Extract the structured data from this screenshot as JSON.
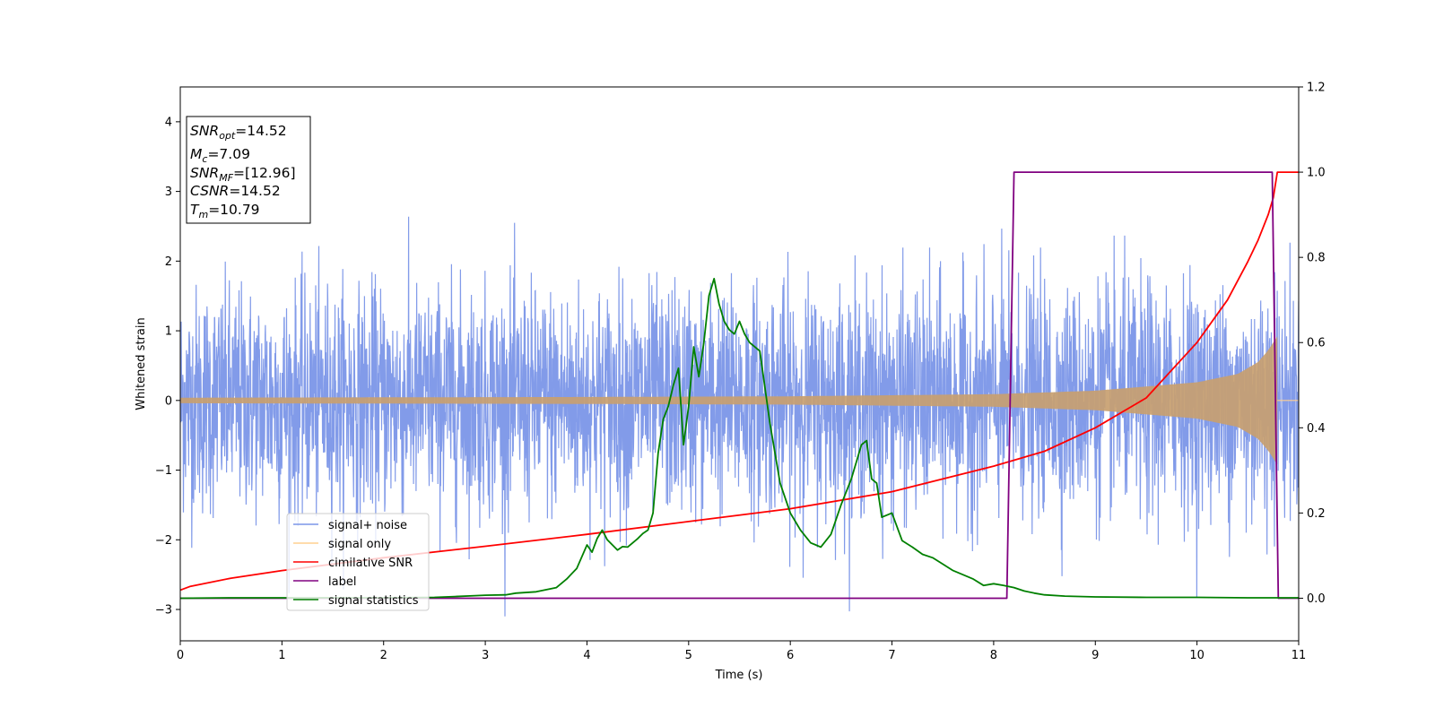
{
  "chart_data": {
    "type": "line",
    "xlabel": "Time (s)",
    "ylabel": "Whitened strain",
    "xlim": [
      0,
      11
    ],
    "ylim_left": [
      -3.45,
      4.5
    ],
    "ylim_right": [
      -0.1,
      1.2
    ],
    "x_ticks": [
      "0",
      "1",
      "2",
      "3",
      "4",
      "5",
      "6",
      "7",
      "8",
      "9",
      "10",
      "11"
    ],
    "y_ticks_left": [
      "−3",
      "−2",
      "−1",
      "0",
      "1",
      "2",
      "3",
      "4"
    ],
    "y_ticks_right": [
      "0.0",
      "0.2",
      "0.4",
      "0.6",
      "0.8",
      "1.0",
      "1.2"
    ],
    "grid": false,
    "legend_position": "lower-left",
    "info_box": {
      "snr_opt": {
        "main": "SNR",
        "sub": "opt",
        "value": "=14.52"
      },
      "mc": {
        "main": "M",
        "sub": "c",
        "value": "=7.09"
      },
      "snr_mf": {
        "main": "SNR",
        "sub": "MF",
        "value": "=[12.96]"
      },
      "csnr": {
        "main": "CSNR",
        "sub": "",
        "value": "=14.52"
      },
      "tm": {
        "main": "T",
        "sub": "m",
        "value": "=10.79"
      }
    },
    "series": [
      {
        "name": "signal+ noise",
        "color": "#7b96e8",
        "axis": "left",
        "kind": "noise",
        "sigma": 0.8,
        "approx_range": [
          -3.1,
          4.17
        ]
      },
      {
        "name": "signal only",
        "color": "#c8a070",
        "legend_color": "#ffd090",
        "axis": "left",
        "kind": "chirp",
        "envelope": {
          "x": [
            0,
            2,
            4,
            6,
            8,
            9,
            10,
            10.4,
            10.6,
            10.7,
            10.79
          ],
          "y": [
            0.04,
            0.045,
            0.05,
            0.06,
            0.09,
            0.14,
            0.26,
            0.38,
            0.55,
            0.72,
            0.92
          ]
        }
      },
      {
        "name": "cimilative SNR",
        "color": "#ff0000",
        "axis": "right",
        "x": [
          0,
          0.1,
          0.5,
          1,
          2,
          3,
          4,
          5,
          6,
          7,
          8,
          8.5,
          9,
          9.5,
          10,
          10.3,
          10.5,
          10.6,
          10.7,
          10.75,
          10.79,
          11
        ],
        "y": [
          0.019,
          0.028,
          0.047,
          0.065,
          0.095,
          0.122,
          0.15,
          0.18,
          0.21,
          0.25,
          0.31,
          0.345,
          0.4,
          0.47,
          0.6,
          0.7,
          0.79,
          0.84,
          0.9,
          0.94,
          1.0,
          1.0
        ]
      },
      {
        "name": "label",
        "color": "#800080",
        "axis": "right",
        "x": [
          0,
          8.13,
          8.2,
          10.74,
          10.8,
          11
        ],
        "y": [
          0,
          0,
          1,
          1,
          0,
          0
        ]
      },
      {
        "name": "signal statistics",
        "color": "#008000",
        "axis": "right",
        "x": [
          0,
          0.5,
          1,
          1.5,
          2,
          2.5,
          2.7,
          2.9,
          3.0,
          3.2,
          3.3,
          3.5,
          3.7,
          3.8,
          3.9,
          4.0,
          4.05,
          4.1,
          4.15,
          4.2,
          4.3,
          4.35,
          4.4,
          4.5,
          4.55,
          4.6,
          4.65,
          4.7,
          4.75,
          4.8,
          4.85,
          4.9,
          4.95,
          5.0,
          5.05,
          5.1,
          5.15,
          5.2,
          5.25,
          5.3,
          5.35,
          5.4,
          5.45,
          5.5,
          5.55,
          5.6,
          5.7,
          5.8,
          5.9,
          6.0,
          6.1,
          6.2,
          6.25,
          6.3,
          6.4,
          6.5,
          6.6,
          6.7,
          6.75,
          6.8,
          6.85,
          6.9,
          7.0,
          7.1,
          7.2,
          7.3,
          7.4,
          7.5,
          7.6,
          7.7,
          7.8,
          7.9,
          8.0,
          8.1,
          8.2,
          8.3,
          8.4,
          8.5,
          8.7,
          9.0,
          9.5,
          10.0,
          10.5,
          11.0
        ],
        "y": [
          0.0,
          0.001,
          0.001,
          0.001,
          0.001,
          0.002,
          0.004,
          0.006,
          0.007,
          0.008,
          0.012,
          0.015,
          0.025,
          0.045,
          0.07,
          0.125,
          0.108,
          0.14,
          0.16,
          0.137,
          0.113,
          0.121,
          0.12,
          0.14,
          0.152,
          0.16,
          0.2,
          0.34,
          0.42,
          0.45,
          0.5,
          0.54,
          0.36,
          0.45,
          0.59,
          0.52,
          0.6,
          0.71,
          0.75,
          0.69,
          0.65,
          0.63,
          0.62,
          0.65,
          0.62,
          0.6,
          0.58,
          0.41,
          0.27,
          0.2,
          0.16,
          0.13,
          0.125,
          0.12,
          0.15,
          0.22,
          0.28,
          0.36,
          0.37,
          0.28,
          0.27,
          0.19,
          0.2,
          0.135,
          0.12,
          0.103,
          0.095,
          0.08,
          0.065,
          0.055,
          0.045,
          0.03,
          0.034,
          0.03,
          0.025,
          0.017,
          0.012,
          0.008,
          0.005,
          0.003,
          0.002,
          0.002,
          0.001,
          0.001
        ]
      }
    ]
  }
}
